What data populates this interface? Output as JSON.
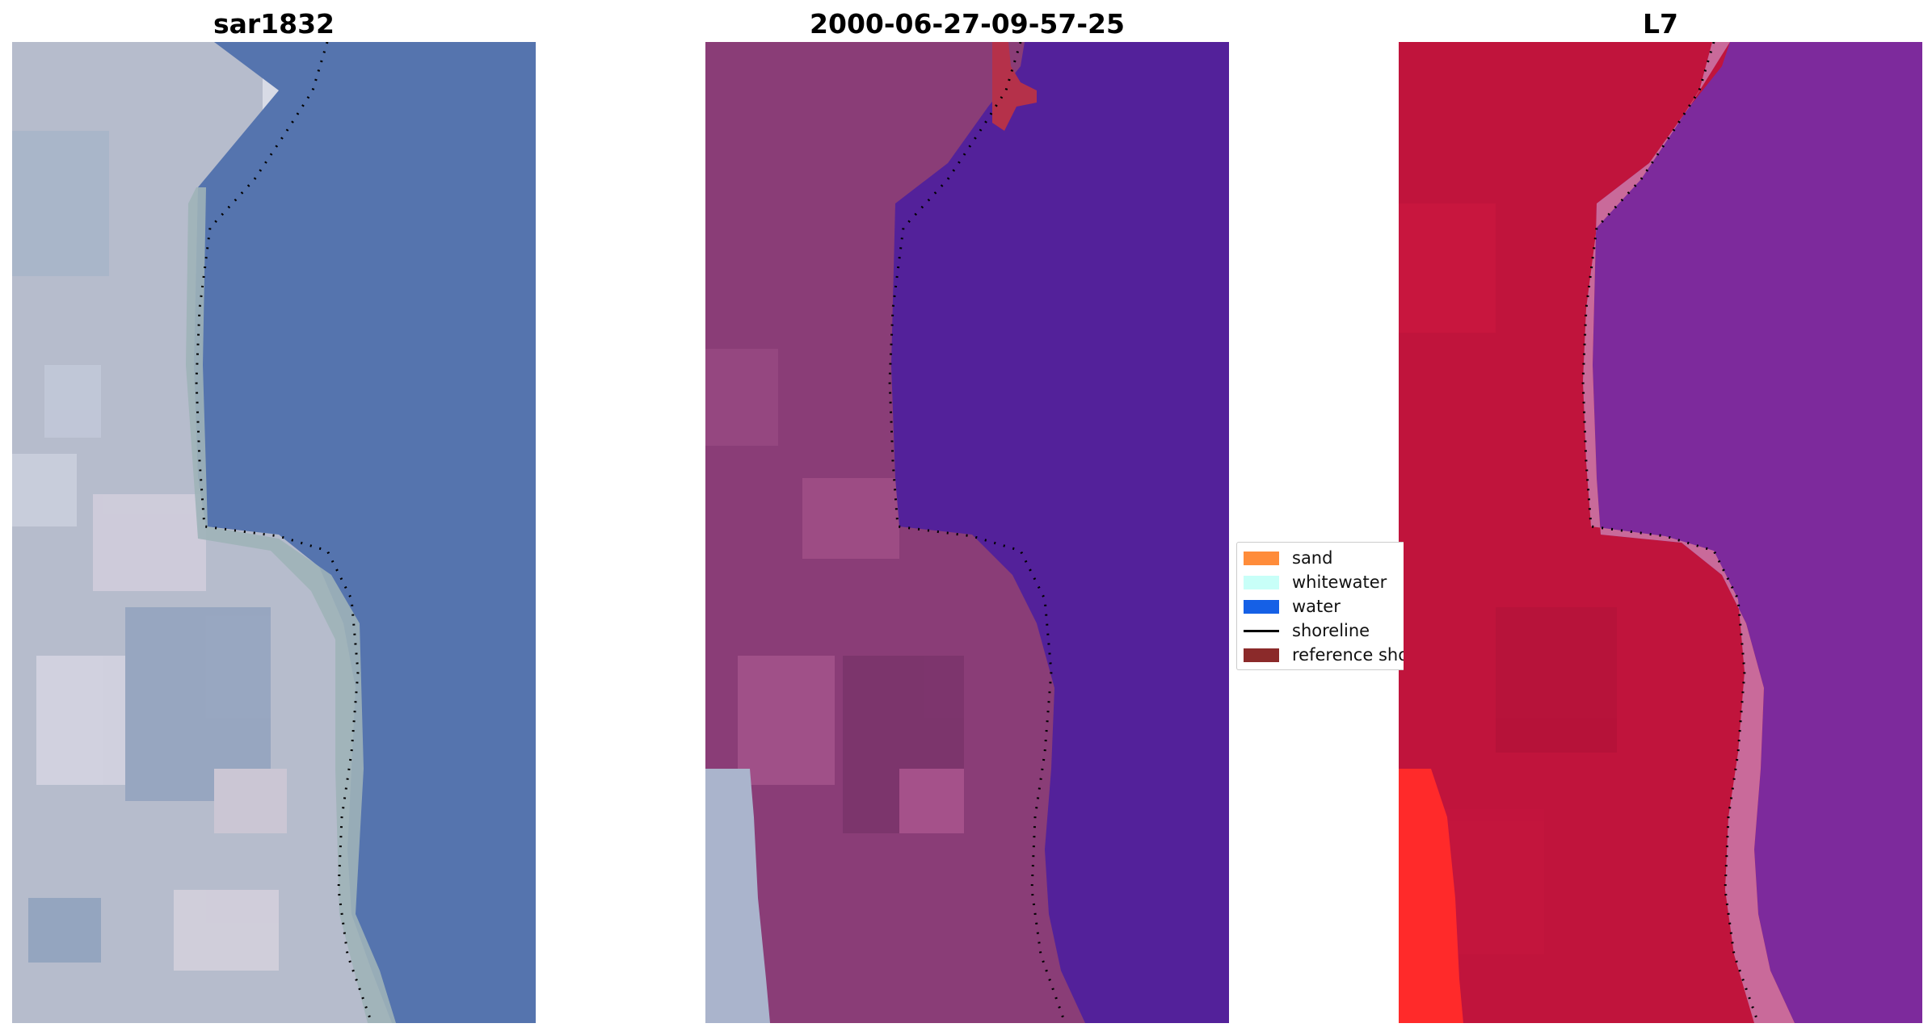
{
  "panels": [
    {
      "title": "sar1832"
    },
    {
      "title": "2000-06-27-09-57-25"
    },
    {
      "title": "L7"
    }
  ],
  "legend": {
    "items": [
      {
        "label": "sand",
        "color": "#ff8c3a"
      },
      {
        "label": "whitewater",
        "color": "#c8fff8"
      },
      {
        "label": "water",
        "color": "#1560e6"
      },
      {
        "label": "shoreline",
        "color": "#000000"
      },
      {
        "label": "reference shoreline",
        "color": "#8b2a2a"
      }
    ]
  },
  "colors": {
    "rgb_land": "#b3b9cc",
    "rgb_water": "#5574ae",
    "class_land": "#8a3d77",
    "class_water": "#53219a",
    "ndwi_land": "#c0143c",
    "ndwi_water": "#7d2a9c"
  }
}
